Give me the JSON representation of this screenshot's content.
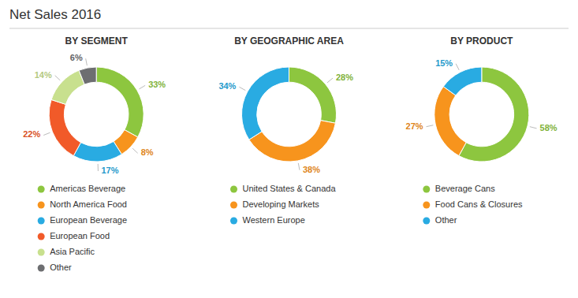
{
  "title": "Net Sales 2016",
  "chart_data": [
    {
      "type": "pie",
      "title": "BY SEGMENT",
      "categories": [
        "Americas Beverage",
        "North America Food",
        "European Beverage",
        "European Food",
        "Asia Pacific",
        "Other"
      ],
      "values": [
        33,
        8,
        17,
        22,
        14,
        6
      ],
      "value_labels": [
        "33%",
        "8%",
        "17%",
        "22%",
        "14%",
        "6%"
      ],
      "colors": [
        "#8dc63f",
        "#f7941d",
        "#29abe2",
        "#f15a29",
        "#c8e08e",
        "#6d6e71"
      ],
      "data_labels": true,
      "legend": "bottom"
    },
    {
      "type": "pie",
      "title": "BY GEOGRAPHIC AREA",
      "categories": [
        "United States & Canada",
        "Developing Markets",
        "Western Europe"
      ],
      "values": [
        28,
        38,
        34
      ],
      "value_labels": [
        "28%",
        "38%",
        "34%"
      ],
      "colors": [
        "#8dc63f",
        "#f7941d",
        "#29abe2"
      ],
      "data_labels": true,
      "legend": "bottom"
    },
    {
      "type": "pie",
      "title": "BY PRODUCT",
      "categories": [
        "Beverage Cans",
        "Food Cans & Closures",
        "Other"
      ],
      "values": [
        58,
        27,
        15
      ],
      "value_labels": [
        "58%",
        "27%",
        "15%"
      ],
      "colors": [
        "#8dc63f",
        "#f7941d",
        "#29abe2"
      ],
      "data_labels": true,
      "legend": "bottom"
    }
  ]
}
